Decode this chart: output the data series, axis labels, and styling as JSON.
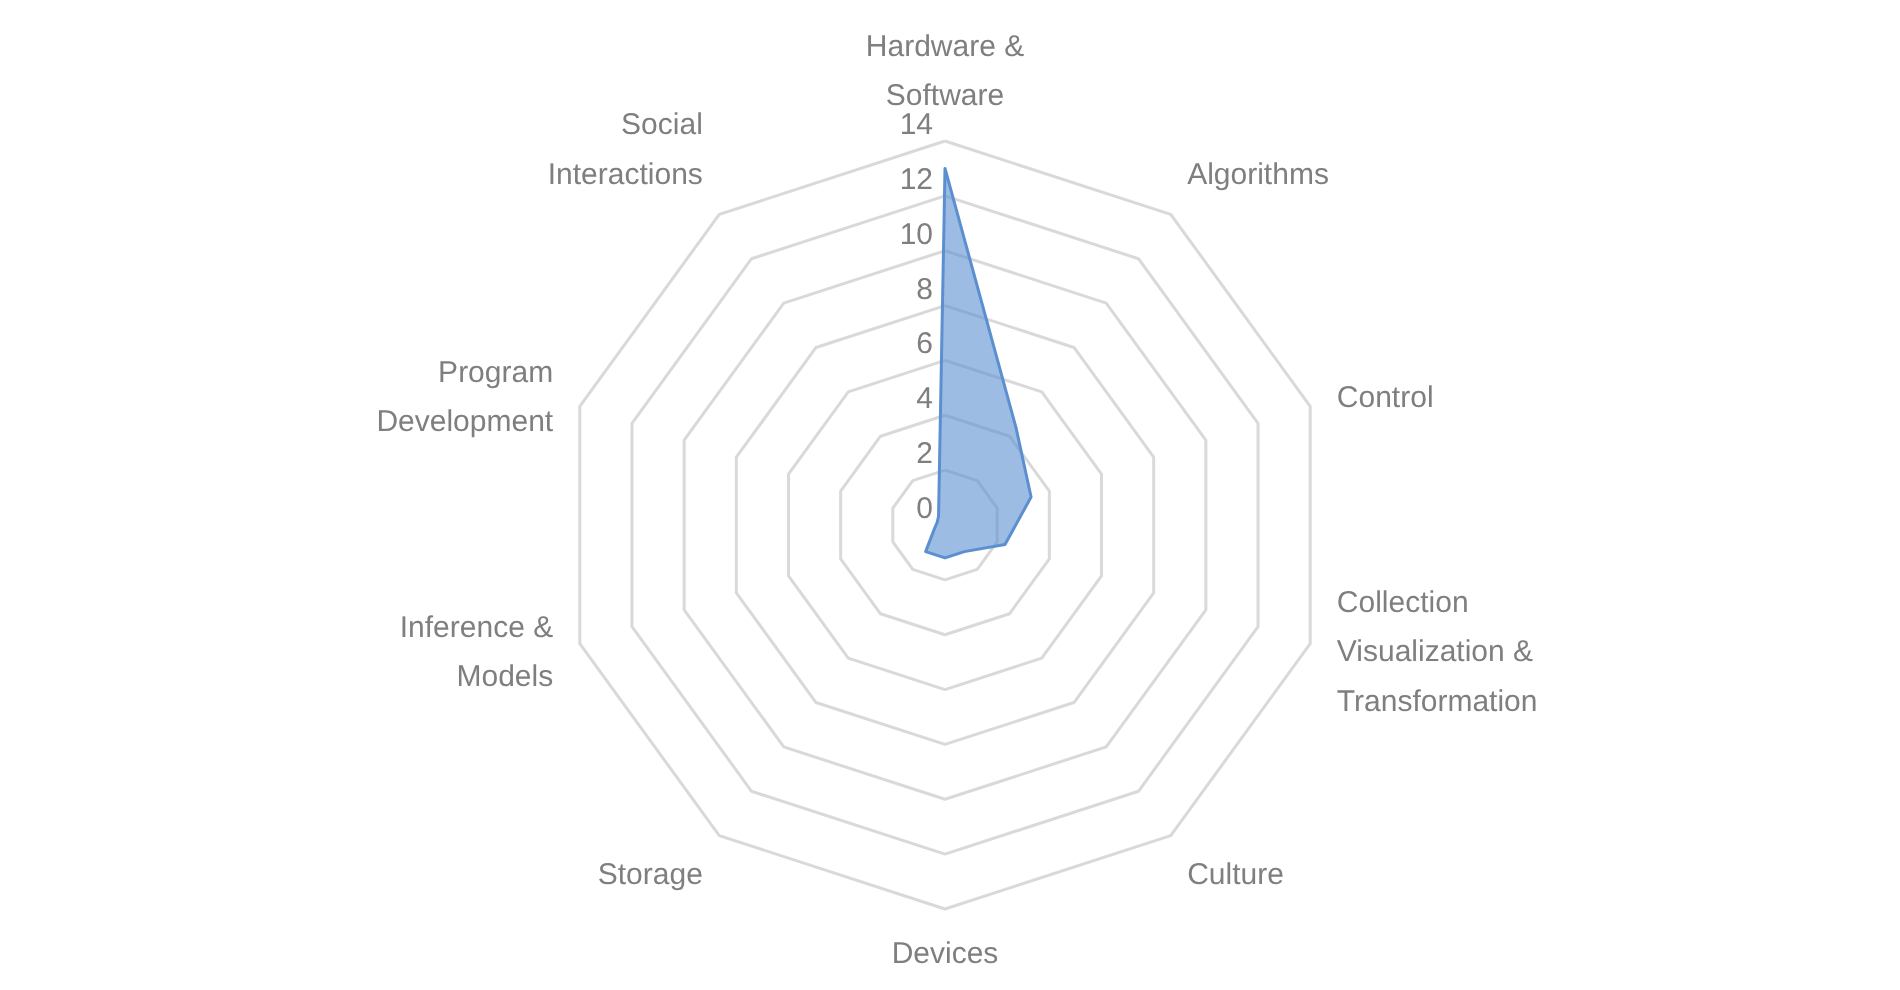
{
  "chart_data": {
    "type": "radar",
    "categories": [
      "Hardware &\nSoftware",
      "Algorithms",
      "Control",
      "Collection\nVisualization &\nTransformation",
      "Culture",
      "Devices",
      "Storage",
      "Inference &\nModels",
      "Program\nDevelopment",
      "Social\nInteractions"
    ],
    "series": [
      {
        "color": "#5b8fd0",
        "values": [
          13,
          4.4,
          3.3,
          2.3,
          1.2,
          1.2,
          1.2,
          0.4,
          0.3,
          0.4
        ]
      }
    ],
    "ylim": [
      0,
      14
    ],
    "yticks": [
      0,
      2,
      4,
      6,
      8,
      10,
      12,
      14
    ],
    "grid": true
  }
}
